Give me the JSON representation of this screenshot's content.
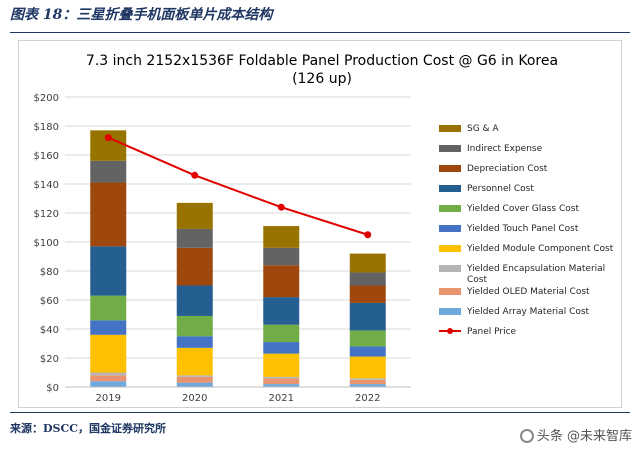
{
  "figure": {
    "title": "图表 18：三星折叠手机面板单片成本结构",
    "source": "来源：DSCC，国金证券研究所",
    "watermark": "头条 @未来智库"
  },
  "chart_data": {
    "type": "bar",
    "stacked": true,
    "title_line1": "7.3 inch 2152x1536F Foldable Panel Production Cost @ G6  in Korea",
    "title_line2": "(126 up)",
    "categories": [
      "2019",
      "2020",
      "2021",
      "2022"
    ],
    "ylim": [
      0,
      200
    ],
    "yticks": [
      0,
      20,
      40,
      60,
      80,
      100,
      120,
      140,
      160,
      180,
      200
    ],
    "ytick_labels": [
      "$0",
      "$20",
      "$40",
      "$60",
      "$80",
      "$100",
      "$120",
      "$140",
      "$160",
      "$180",
      "$200"
    ],
    "series": [
      {
        "name": "Yielded Array Material Cost",
        "color": "#6fa8dc",
        "values": [
          4,
          3,
          2,
          2
        ]
      },
      {
        "name": "Yielded OLED Material Cost",
        "color": "#e8956f",
        "values": [
          4,
          4,
          4,
          3
        ]
      },
      {
        "name": "Yielded Encapsulation Material Cost",
        "color": "#b4b4b4",
        "values": [
          2,
          1,
          1,
          1
        ]
      },
      {
        "name": "Yielded Module Component Cost",
        "color": "#ffc000",
        "values": [
          26,
          19,
          16,
          15
        ]
      },
      {
        "name": "Yielded Touch Panel Cost",
        "color": "#4472c4",
        "values": [
          10,
          8,
          8,
          7
        ]
      },
      {
        "name": "Yielded Cover Glass Cost",
        "color": "#70ad47",
        "values": [
          17,
          14,
          12,
          11
        ]
      },
      {
        "name": "Personnel Cost",
        "color": "#255e91",
        "values": [
          34,
          21,
          19,
          19
        ]
      },
      {
        "name": "Depreciation Cost",
        "color": "#9e480e",
        "values": [
          44,
          26,
          22,
          12
        ]
      },
      {
        "name": "Indirect Expense",
        "color": "#636363",
        "values": [
          15,
          13,
          12,
          9
        ]
      },
      {
        "name": "SG & A",
        "color": "#997300",
        "values": [
          21,
          18,
          15,
          13
        ]
      }
    ],
    "line_series": {
      "name": "Panel Price",
      "color": "#e00000",
      "values": [
        172,
        146,
        124,
        105
      ]
    },
    "legend_order": [
      "SG & A",
      "Indirect Expense",
      "Depreciation Cost",
      "Personnel Cost",
      "Yielded Cover Glass Cost",
      "Yielded Touch Panel Cost",
      "Yielded Module Component Cost",
      "Yielded Encapsulation Material Cost",
      "Yielded OLED Material Cost",
      "Yielded Array Material Cost",
      "Panel Price"
    ],
    "legend_position": "right",
    "grid": true
  }
}
